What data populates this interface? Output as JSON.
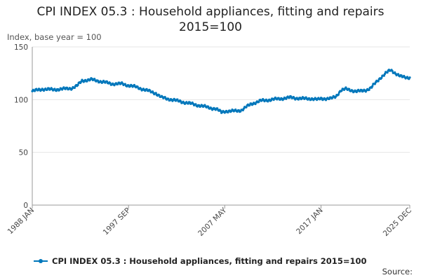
{
  "title_line1": "CPI INDEX 05.3 : Household appliances, fitting and repairs",
  "title_line2": "2015=100",
  "y_axis_label": "Index, base year = 100",
  "source": "Source:",
  "chart_data": {
    "type": "line",
    "title": "CPI INDEX 05.3 : Household appliances, fitting and repairs 2015=100",
    "ylabel": "Index, base year = 100",
    "xlabel": "",
    "ylim": [
      0,
      150
    ],
    "yticks": [
      0,
      50,
      100,
      150
    ],
    "grid": true,
    "legend": "bottom",
    "color": "#0077bb",
    "x_tick_labels": [
      "1988 JAN",
      "1997 SEP",
      "2007 MAY",
      "2017 JAN",
      "2025 DEC"
    ],
    "series": [
      {
        "name": "CPI INDEX 05.3 : Household appliances, fitting and repairs 2015=100",
        "x": [
          "1988-01",
          "1989-01",
          "1990-01",
          "1991-01",
          "1992-01",
          "1992-07",
          "1993-01",
          "1994-01",
          "1995-01",
          "1996-01",
          "1997-01",
          "1997-09",
          "1998-06",
          "1999-06",
          "2000-06",
          "2001-01",
          "2002-01",
          "2003-01",
          "2004-01",
          "2005-01",
          "2006-01",
          "2006-07",
          "2007-01",
          "2007-05",
          "2008-01",
          "2009-01",
          "2010-01",
          "2011-01",
          "2012-01",
          "2013-01",
          "2014-01",
          "2015-01",
          "2016-01",
          "2016-09",
          "2017-01",
          "2018-01",
          "2018-07",
          "2019-01",
          "2019-07",
          "2020-01",
          "2020-07",
          "2021-01",
          "2021-07",
          "2022-01",
          "2022-07",
          "2023-01",
          "2023-07",
          "2024-01",
          "2024-07",
          "2025-01",
          "2025-06",
          "2025-12"
        ],
        "values": [
          108,
          110,
          109.5,
          110,
          111,
          113,
          118,
          119,
          117,
          115,
          115,
          113.5,
          112,
          109,
          106,
          102,
          100,
          98,
          96,
          94,
          92,
          91,
          88,
          89,
          89,
          90,
          96,
          99,
          100,
          101,
          102,
          101,
          101,
          100,
          101,
          101,
          103,
          109,
          110,
          109,
          108,
          108,
          109,
          111,
          116,
          121,
          125,
          128,
          125,
          122,
          121,
          121
        ]
      }
    ]
  }
}
